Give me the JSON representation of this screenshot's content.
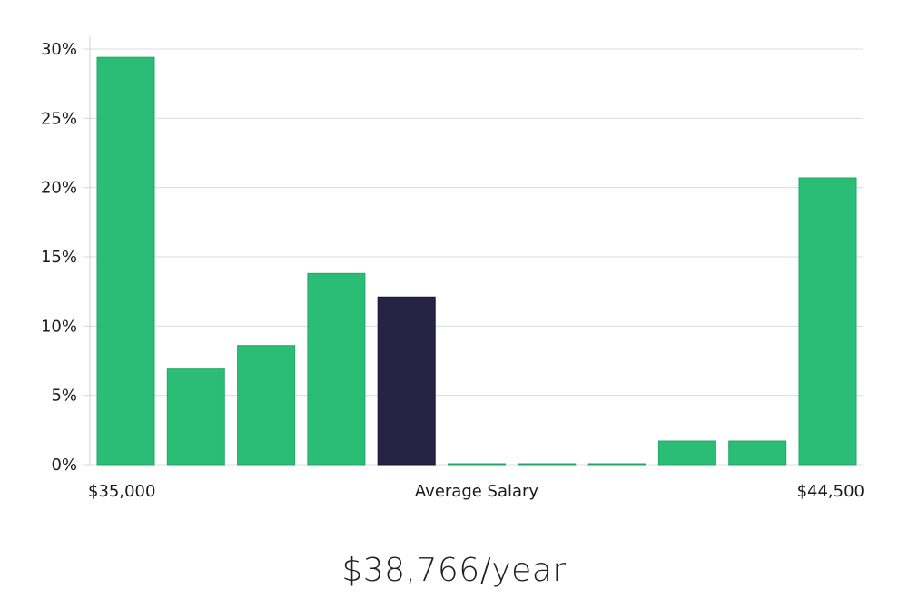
{
  "chart_data": {
    "type": "bar",
    "categories": [
      "1",
      "2",
      "3",
      "4",
      "5",
      "6",
      "7",
      "8",
      "9",
      "10",
      "11"
    ],
    "values": [
      29.4,
      6.9,
      8.6,
      13.8,
      12.1,
      0.05,
      0.05,
      0.05,
      1.7,
      1.7,
      20.7
    ],
    "highlight_index": 4,
    "ylim": [
      0,
      30
    ],
    "yticks": [
      "0%",
      "5%",
      "10%",
      "15%",
      "20%",
      "25%",
      "30%"
    ],
    "ytick_values": [
      0,
      5,
      10,
      15,
      20,
      25,
      30
    ],
    "x_labels": {
      "left": "$35,000",
      "center": "Average Salary",
      "right": "$44,500"
    },
    "grid": true,
    "colors": {
      "bar": "#2bbd76",
      "bar_stroke": "#22a866",
      "highlight": "#262444",
      "highlight_stroke": "#15143a"
    }
  },
  "headline": "$38,766/year"
}
